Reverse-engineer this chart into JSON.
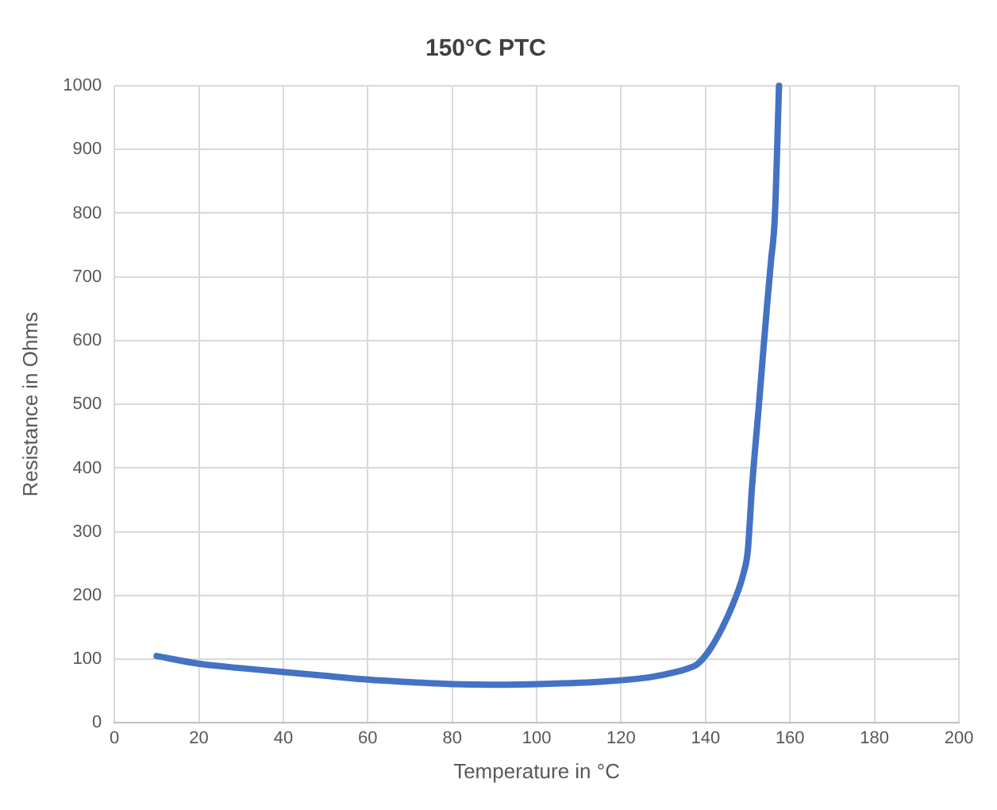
{
  "chart_data": {
    "type": "line",
    "title": "150°C PTC",
    "xlabel": "Temperature in °C",
    "ylabel": "Resistance in Ohms",
    "series": [
      {
        "color": "#4472c4",
        "x": [
          10,
          20,
          30,
          40,
          50,
          60,
          70,
          80,
          90,
          100,
          110,
          120,
          127,
          133,
          136,
          138,
          141,
          144,
          147,
          149,
          150,
          151,
          152,
          152.6,
          153.5,
          154.5,
          155.5,
          156.4,
          157.4
        ],
        "values": [
          105,
          93,
          86,
          80,
          74,
          68,
          64,
          61,
          60,
          61,
          63,
          67,
          72,
          80,
          86,
          92,
          115,
          150,
          195,
          235,
          270,
          370,
          450,
          496,
          570,
          650,
          725,
          793,
          1000
        ]
      }
    ],
    "xlim": [
      0,
      200
    ],
    "xticks": [
      0,
      20,
      40,
      60,
      80,
      100,
      120,
      140,
      160,
      180,
      200
    ],
    "ylim": [
      0,
      1000
    ],
    "yticks": [
      0,
      100,
      200,
      300,
      400,
      500,
      600,
      700,
      800,
      900,
      1000
    ],
    "grid": true,
    "legend": false,
    "marker": "none",
    "line_style": "solid"
  }
}
